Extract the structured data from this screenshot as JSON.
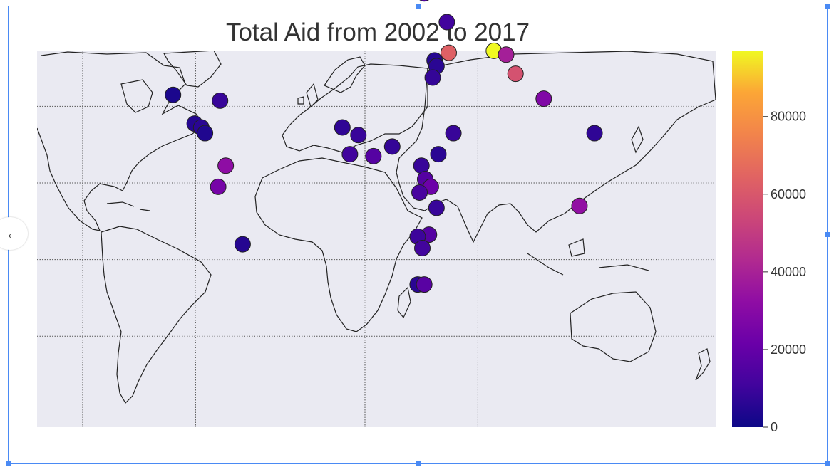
{
  "chart_data": {
    "type": "scatter",
    "title": "Total Aid from 2002 to 2017",
    "xlabel": "",
    "ylabel": "",
    "map": "world, equirectangular projection, coastlines and country borders",
    "xlim": [
      -180,
      180
    ],
    "ylim": [
      -60,
      85
    ],
    "grid": true,
    "colorbar": {
      "colormap": "plasma",
      "range": [
        0,
        97000
      ],
      "ticks": [
        0,
        20000,
        40000,
        60000,
        80000
      ],
      "tick_labels": [
        "0",
        "20000",
        "40000",
        "60000",
        "80000"
      ],
      "placement": "right"
    },
    "points": [
      {
        "lon": -102,
        "lat": 23,
        "value": 3000
      },
      {
        "lon": -90.5,
        "lat": 15.5,
        "value": 5000
      },
      {
        "lon": -87,
        "lat": 14.5,
        "value": 6000
      },
      {
        "lon": -85,
        "lat": 13,
        "value": 4000
      },
      {
        "lon": -77,
        "lat": 21.5,
        "value": 9000
      },
      {
        "lon": -74,
        "lat": 4.5,
        "value": 32000
      },
      {
        "lon": -78,
        "lat": -1,
        "value": 25000
      },
      {
        "lon": -65,
        "lat": -16,
        "value": 5000
      },
      {
        "lon": -12,
        "lat": 14.5,
        "value": 7000
      },
      {
        "lon": -3.5,
        "lat": 12.5,
        "value": 9000
      },
      {
        "lon": -8,
        "lat": 7.5,
        "value": 11000
      },
      {
        "lon": 4.5,
        "lat": 7,
        "value": 16000
      },
      {
        "lon": 14.5,
        "lat": 9.5,
        "value": 8000
      },
      {
        "lon": 31.5,
        "lat": 49.5,
        "value": 15000
      },
      {
        "lon": 43.5,
        "lat": 42,
        "value": 11000
      },
      {
        "lon": 29,
        "lat": 54,
        "value": 19000
      },
      {
        "lon": 44.5,
        "lat": 34,
        "value": 63000
      },
      {
        "lon": 37,
        "lat": 32,
        "value": 5000
      },
      {
        "lon": 38,
        "lat": 30.5,
        "value": 6000
      },
      {
        "lon": 36,
        "lat": 27.5,
        "value": 8000
      },
      {
        "lon": 47,
        "lat": 13,
        "value": 9000
      },
      {
        "lon": 39,
        "lat": 7.5,
        "value": 6000
      },
      {
        "lon": 30,
        "lat": 4.5,
        "value": 9000
      },
      {
        "lon": 32,
        "lat": 1,
        "value": 16000
      },
      {
        "lon": 35,
        "lat": -1,
        "value": 22000
      },
      {
        "lon": 29,
        "lat": -2.5,
        "value": 13000
      },
      {
        "lon": 38,
        "lat": -6.5,
        "value": 9000
      },
      {
        "lon": 34,
        "lat": -13.5,
        "value": 16000
      },
      {
        "lon": 28,
        "lat": -14,
        "value": 10000
      },
      {
        "lon": 30.5,
        "lat": -17,
        "value": 11000
      },
      {
        "lon": 28,
        "lat": -26.5,
        "value": 6000
      },
      {
        "lon": 31.5,
        "lat": -26.5,
        "value": 17000
      },
      {
        "lon": 68.5,
        "lat": 34.5,
        "value": 97000
      },
      {
        "lon": 75,
        "lat": 33.5,
        "value": 39000
      },
      {
        "lon": 80,
        "lat": 28.5,
        "value": 58000
      },
      {
        "lon": 95,
        "lat": 22,
        "value": 28000
      },
      {
        "lon": 114,
        "lat": -6,
        "value": 33000
      },
      {
        "lon": 122,
        "lat": 13,
        "value": 7000
      }
    ]
  }
}
